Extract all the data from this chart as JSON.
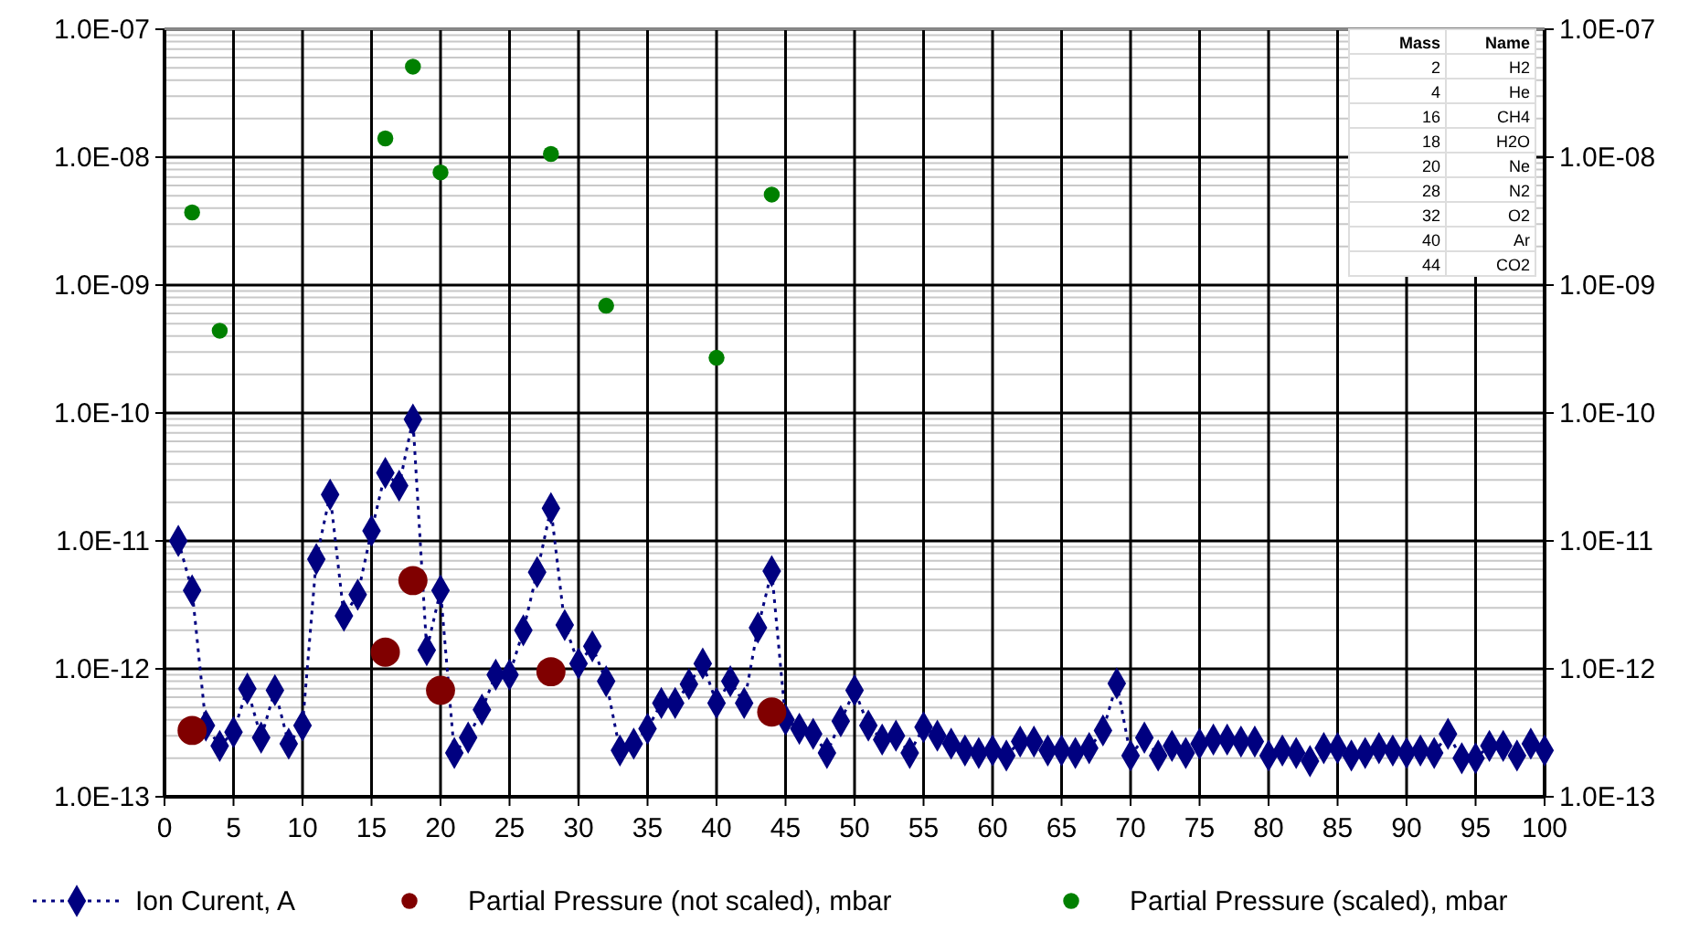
{
  "chart_data": {
    "type": "line",
    "xlabel": null,
    "log": "y",
    "grid": true,
    "legend": "bottom",
    "xlim": [
      0,
      100
    ],
    "xticks": [
      0,
      5,
      10,
      15,
      20,
      25,
      30,
      35,
      40,
      45,
      50,
      55,
      60,
      65,
      70,
      75,
      80,
      85,
      90,
      95,
      100
    ],
    "ylim": [
      1e-13,
      1e-07
    ],
    "yticks": [
      {
        "value": 1e-13,
        "label": "1.0E-13"
      },
      {
        "value": 1e-12,
        "label": "1.0E-12"
      },
      {
        "value": 1e-11,
        "label": "1.0E-11"
      },
      {
        "value": 1e-10,
        "label": "1.0E-10"
      },
      {
        "value": 1e-09,
        "label": "1.0E-09"
      },
      {
        "value": 1e-08,
        "label": "1.0E-08"
      },
      {
        "value": 1e-07,
        "label": "1.0E-07"
      }
    ],
    "annotations": [
      "Mass",
      "Name",
      "2",
      "H2",
      "4",
      "He",
      "16",
      "CH4",
      "18",
      "H2O",
      "20",
      "Ne",
      "28",
      "N2",
      "32",
      "O2",
      "40",
      "Ar",
      "44",
      "CO2"
    ],
    "series": [
      {
        "name": "Ion Curent, A",
        "type": "line",
        "color": "#000080",
        "marker": "diamond",
        "line_style": "dotted",
        "x": [
          1,
          2,
          3,
          4,
          5,
          6,
          7,
          8,
          9,
          10,
          11,
          12,
          13,
          14,
          15,
          16,
          17,
          18,
          19,
          20,
          21,
          22,
          23,
          24,
          25,
          26,
          27,
          28,
          29,
          30,
          31,
          32,
          33,
          34,
          35,
          36,
          37,
          38,
          39,
          40,
          41,
          42,
          43,
          44,
          45,
          46,
          47,
          48,
          49,
          50,
          51,
          52,
          53,
          54,
          55,
          56,
          57,
          58,
          59,
          60,
          61,
          62,
          63,
          64,
          65,
          66,
          67,
          68,
          69,
          70,
          71,
          72,
          73,
          74,
          75,
          76,
          77,
          78,
          79,
          80,
          81,
          82,
          83,
          84,
          85,
          86,
          87,
          88,
          89,
          90,
          91,
          92,
          93,
          94,
          95,
          96,
          97,
          98,
          99,
          100
        ],
        "values": [
          1e-11,
          4.1e-12,
          3.6e-13,
          2.5e-13,
          3.2e-13,
          7e-13,
          2.9e-13,
          6.8e-13,
          2.6e-13,
          3.6e-13,
          7.2e-12,
          2.3e-11,
          2.6e-12,
          3.8e-12,
          1.2e-11,
          3.4e-11,
          2.7e-11,
          8.9e-11,
          1.4e-12,
          4.1e-12,
          2.2e-13,
          2.9e-13,
          4.8e-13,
          9e-13,
          9e-13,
          2e-12,
          5.7e-12,
          1.8e-11,
          2.2e-12,
          1.1e-12,
          1.5e-12,
          8e-13,
          2.3e-13,
          2.6e-13,
          3.4e-13,
          5.4e-13,
          5.4e-13,
          7.6e-13,
          1.1e-12,
          5.4e-13,
          8e-13,
          5.4e-13,
          2.1e-12,
          5.8e-12,
          4e-13,
          3.4e-13,
          3.1e-13,
          2.2e-13,
          3.9e-13,
          6.8e-13,
          3.6e-13,
          2.8e-13,
          3e-13,
          2.2e-13,
          3.5e-13,
          3e-13,
          2.6e-13,
          2.3e-13,
          2.2e-13,
          2.3e-13,
          2.1e-13,
          2.7e-13,
          2.7e-13,
          2.3e-13,
          2.3e-13,
          2.2e-13,
          2.4e-13,
          3.3e-13,
          7.7e-13,
          2.1e-13,
          2.9e-13,
          2.1e-13,
          2.5e-13,
          2.2e-13,
          2.6e-13,
          2.8e-13,
          2.8e-13,
          2.7e-13,
          2.7e-13,
          2.1e-13,
          2.3e-13,
          2.2e-13,
          1.9e-13,
          2.4e-13,
          2.4e-13,
          2.1e-13,
          2.2e-13,
          2.4e-13,
          2.3e-13,
          2.2e-13,
          2.3e-13,
          2.2e-13,
          3.1e-13,
          2e-13,
          2e-13,
          2.5e-13,
          2.5e-13,
          2.1e-13,
          2.6e-13,
          2.3e-13
        ]
      },
      {
        "name": "Partial Pressure (not scaled), mbar",
        "type": "scatter",
        "color": "#800000",
        "marker": "circle",
        "x": [
          2,
          16,
          18,
          20,
          28,
          44
        ],
        "values": [
          3.3e-13,
          1.35e-12,
          4.9e-12,
          6.8e-13,
          9.5e-13,
          4.6e-13
        ]
      },
      {
        "name": "Partial Pressure (scaled), mbar",
        "type": "scatter",
        "color": "#008000",
        "marker": "circle",
        "x": [
          2,
          4,
          16,
          18,
          20,
          28,
          32,
          40,
          44
        ],
        "values": [
          3.7e-09,
          4.4e-10,
          1.4e-08,
          5.1e-08,
          7.6e-09,
          1.06e-08,
          6.9e-10,
          2.7e-10,
          5.1e-09
        ]
      }
    ]
  }
}
